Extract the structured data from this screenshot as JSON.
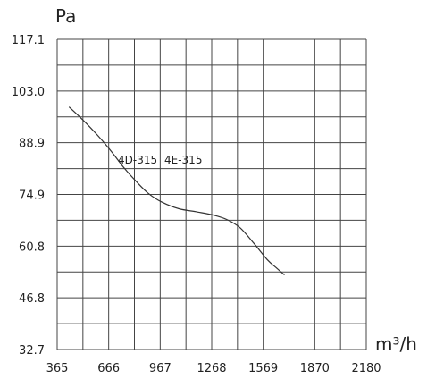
{
  "chart_data": {
    "type": "line",
    "title": "",
    "ylabel": "Pa",
    "xlabel": "m³/h",
    "xlim": [
      365,
      2180
    ],
    "ylim": [
      32.7,
      117.1
    ],
    "x_ticks": [
      "365",
      "666",
      "967",
      "1268",
      "1569",
      "1870",
      "2180"
    ],
    "y_ticks": [
      "117.1",
      "103.0",
      "88.9",
      "74.9",
      "60.8",
      "46.8",
      "32.7"
    ],
    "grid": true,
    "annotations": [
      "4D-315",
      "4E-315"
    ],
    "series": [
      {
        "x": [
          435,
          520,
          600,
          680,
          760,
          830,
          900,
          980,
          1080,
          1180,
          1280,
          1360,
          1440,
          1520,
          1600,
          1650,
          1700
        ],
        "y": [
          98.7,
          95.0,
          91.1,
          86.8,
          82.0,
          78.4,
          75.2,
          72.8,
          71.0,
          70.2,
          69.3,
          68.1,
          65.8,
          61.6,
          57.1,
          55.0,
          53.0
        ]
      }
    ]
  }
}
